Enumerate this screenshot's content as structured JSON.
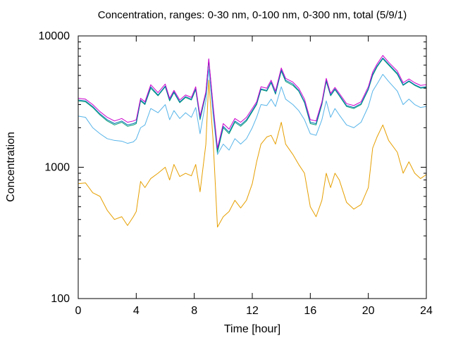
{
  "chart_data": {
    "type": "line",
    "title": "Concentration, ranges: 0-30 nm, 0-100 nm, 0-300 nm, total (5/9/1)",
    "xlabel": "Time [hour]",
    "ylabel": "Concentration",
    "xlim": [
      0,
      24
    ],
    "ylim": [
      100,
      10000
    ],
    "y_scale": "log",
    "grid": false,
    "x_ticks": [
      0,
      4,
      8,
      12,
      16,
      20,
      24
    ],
    "x_tick_labels": [
      "0",
      "4",
      "8",
      "12",
      "16",
      "20",
      "24"
    ],
    "y_ticks": [
      100,
      1000,
      10000
    ],
    "y_tick_labels": [
      "100",
      "1000",
      "10000"
    ],
    "y_minor_ticks": [
      200,
      300,
      400,
      500,
      600,
      700,
      800,
      900,
      2000,
      3000,
      4000,
      5000,
      6000,
      7000,
      8000,
      9000
    ],
    "series": [
      {
        "color": "#e69f00",
        "points": [
          [
            0,
            750
          ],
          [
            0.5,
            760
          ],
          [
            1,
            640
          ],
          [
            1.5,
            600
          ],
          [
            2,
            470
          ],
          [
            2.5,
            400
          ],
          [
            3,
            420
          ],
          [
            3.4,
            360
          ],
          [
            3.8,
            420
          ],
          [
            4,
            460
          ],
          [
            4.3,
            780
          ],
          [
            4.6,
            700
          ],
          [
            5,
            820
          ],
          [
            5.5,
            900
          ],
          [
            6,
            1000
          ],
          [
            6.3,
            800
          ],
          [
            6.6,
            1050
          ],
          [
            7,
            850
          ],
          [
            7.4,
            900
          ],
          [
            7.8,
            860
          ],
          [
            8.1,
            1050
          ],
          [
            8.4,
            650
          ],
          [
            8.8,
            1500
          ],
          [
            9,
            4600
          ],
          [
            9.3,
            1600
          ],
          [
            9.6,
            350
          ],
          [
            10,
            420
          ],
          [
            10.4,
            460
          ],
          [
            10.8,
            560
          ],
          [
            11.2,
            490
          ],
          [
            11.6,
            560
          ],
          [
            12,
            750
          ],
          [
            12.3,
            1100
          ],
          [
            12.6,
            1500
          ],
          [
            13,
            1700
          ],
          [
            13.3,
            1750
          ],
          [
            13.6,
            1500
          ],
          [
            14,
            2200
          ],
          [
            14.3,
            1500
          ],
          [
            14.8,
            1250
          ],
          [
            15.2,
            1050
          ],
          [
            15.6,
            900
          ],
          [
            16,
            500
          ],
          [
            16.4,
            420
          ],
          [
            16.8,
            560
          ],
          [
            17.1,
            900
          ],
          [
            17.4,
            700
          ],
          [
            17.7,
            900
          ],
          [
            18,
            800
          ],
          [
            18.5,
            540
          ],
          [
            19,
            480
          ],
          [
            19.5,
            520
          ],
          [
            20,
            700
          ],
          [
            20.3,
            1400
          ],
          [
            20.6,
            1700
          ],
          [
            21,
            2100
          ],
          [
            21.4,
            1600
          ],
          [
            22,
            1300
          ],
          [
            22.4,
            900
          ],
          [
            22.8,
            1100
          ],
          [
            23.2,
            900
          ],
          [
            23.6,
            820
          ],
          [
            24,
            880
          ]
        ]
      },
      {
        "color": "#56b4e9",
        "points": [
          [
            0,
            2450
          ],
          [
            0.5,
            2400
          ],
          [
            1,
            2000
          ],
          [
            1.5,
            1800
          ],
          [
            2,
            1650
          ],
          [
            2.5,
            1600
          ],
          [
            3,
            1580
          ],
          [
            3.4,
            1520
          ],
          [
            3.8,
            1560
          ],
          [
            4,
            1640
          ],
          [
            4.3,
            2000
          ],
          [
            4.6,
            2100
          ],
          [
            5,
            2800
          ],
          [
            5.5,
            2600
          ],
          [
            6,
            3000
          ],
          [
            6.3,
            2300
          ],
          [
            6.6,
            2700
          ],
          [
            7,
            2350
          ],
          [
            7.4,
            2600
          ],
          [
            7.8,
            2400
          ],
          [
            8.1,
            2850
          ],
          [
            8.4,
            1800
          ],
          [
            8.8,
            3200
          ],
          [
            9,
            5600
          ],
          [
            9.3,
            2500
          ],
          [
            9.6,
            1250
          ],
          [
            10,
            1500
          ],
          [
            10.4,
            1350
          ],
          [
            10.8,
            1650
          ],
          [
            11.2,
            1500
          ],
          [
            11.6,
            1650
          ],
          [
            12,
            2000
          ],
          [
            12.3,
            2400
          ],
          [
            12.6,
            3000
          ],
          [
            13,
            2950
          ],
          [
            13.3,
            3300
          ],
          [
            13.6,
            2900
          ],
          [
            14,
            4100
          ],
          [
            14.3,
            3300
          ],
          [
            14.8,
            3000
          ],
          [
            15.2,
            2700
          ],
          [
            15.6,
            2300
          ],
          [
            16,
            1800
          ],
          [
            16.4,
            1750
          ],
          [
            16.8,
            2300
          ],
          [
            17.1,
            3200
          ],
          [
            17.4,
            2400
          ],
          [
            17.7,
            2800
          ],
          [
            18,
            2500
          ],
          [
            18.5,
            2100
          ],
          [
            19,
            2000
          ],
          [
            19.5,
            2200
          ],
          [
            20,
            2900
          ],
          [
            20.3,
            3800
          ],
          [
            20.6,
            4300
          ],
          [
            21,
            5100
          ],
          [
            21.4,
            4500
          ],
          [
            22,
            3800
          ],
          [
            22.4,
            3000
          ],
          [
            22.8,
            3300
          ],
          [
            23.2,
            3000
          ],
          [
            23.6,
            2850
          ],
          [
            24,
            2900
          ]
        ]
      },
      {
        "color": "#009e73",
        "points": [
          [
            0,
            3200
          ],
          [
            0.5,
            3150
          ],
          [
            1,
            2850
          ],
          [
            1.5,
            2500
          ],
          [
            2,
            2250
          ],
          [
            2.5,
            2100
          ],
          [
            3,
            2200
          ],
          [
            3.4,
            2050
          ],
          [
            3.8,
            2100
          ],
          [
            4,
            2150
          ],
          [
            4.3,
            3200
          ],
          [
            4.6,
            3000
          ],
          [
            5,
            4000
          ],
          [
            5.5,
            3500
          ],
          [
            6,
            4100
          ],
          [
            6.3,
            3200
          ],
          [
            6.6,
            3700
          ],
          [
            7,
            3100
          ],
          [
            7.4,
            3400
          ],
          [
            7.8,
            3250
          ],
          [
            8.1,
            3900
          ],
          [
            8.4,
            2300
          ],
          [
            8.8,
            3600
          ],
          [
            9,
            6500
          ],
          [
            9.3,
            2800
          ],
          [
            9.6,
            1300
          ],
          [
            10,
            2000
          ],
          [
            10.4,
            1800
          ],
          [
            10.8,
            2200
          ],
          [
            11.2,
            2050
          ],
          [
            11.6,
            2250
          ],
          [
            12,
            2650
          ],
          [
            12.3,
            3000
          ],
          [
            12.6,
            3900
          ],
          [
            13,
            3800
          ],
          [
            13.3,
            4400
          ],
          [
            13.6,
            3600
          ],
          [
            14,
            5400
          ],
          [
            14.3,
            4500
          ],
          [
            14.8,
            4200
          ],
          [
            15.2,
            3800
          ],
          [
            15.6,
            3100
          ],
          [
            16,
            2150
          ],
          [
            16.4,
            2100
          ],
          [
            16.8,
            3000
          ],
          [
            17.1,
            4500
          ],
          [
            17.4,
            3500
          ],
          [
            17.7,
            3900
          ],
          [
            18,
            3500
          ],
          [
            18.5,
            2900
          ],
          [
            19,
            2800
          ],
          [
            19.5,
            3000
          ],
          [
            20,
            3900
          ],
          [
            20.3,
            5000
          ],
          [
            20.6,
            5800
          ],
          [
            21,
            6700
          ],
          [
            21.4,
            6000
          ],
          [
            22,
            5100
          ],
          [
            22.4,
            4200
          ],
          [
            22.8,
            4500
          ],
          [
            23.2,
            4200
          ],
          [
            23.6,
            4000
          ],
          [
            24,
            4050
          ]
        ]
      },
      {
        "color": "#0072b2",
        "points": [
          [
            0,
            3250
          ],
          [
            0.5,
            3200
          ],
          [
            1,
            2900
          ],
          [
            1.5,
            2550
          ],
          [
            2,
            2300
          ],
          [
            2.5,
            2150
          ],
          [
            3,
            2250
          ],
          [
            3.4,
            2100
          ],
          [
            3.8,
            2150
          ],
          [
            4,
            2200
          ],
          [
            4.3,
            3250
          ],
          [
            4.6,
            3050
          ],
          [
            5,
            4100
          ],
          [
            5.5,
            3550
          ],
          [
            6,
            4150
          ],
          [
            6.3,
            3250
          ],
          [
            6.6,
            3750
          ],
          [
            7,
            3150
          ],
          [
            7.4,
            3450
          ],
          [
            7.8,
            3300
          ],
          [
            8.1,
            3950
          ],
          [
            8.4,
            2350
          ],
          [
            8.8,
            3650
          ],
          [
            9,
            6600
          ],
          [
            9.3,
            2850
          ],
          [
            9.6,
            1350
          ],
          [
            10,
            2050
          ],
          [
            10.4,
            1850
          ],
          [
            10.8,
            2250
          ],
          [
            11.2,
            2100
          ],
          [
            11.6,
            2300
          ],
          [
            12,
            2700
          ],
          [
            12.3,
            3050
          ],
          [
            12.6,
            3950
          ],
          [
            13,
            3850
          ],
          [
            13.3,
            4450
          ],
          [
            13.6,
            3650
          ],
          [
            14,
            5500
          ],
          [
            14.3,
            4600
          ],
          [
            14.8,
            4300
          ],
          [
            15.2,
            3850
          ],
          [
            15.6,
            3150
          ],
          [
            16,
            2200
          ],
          [
            16.4,
            2150
          ],
          [
            16.8,
            3050
          ],
          [
            17.1,
            4600
          ],
          [
            17.4,
            3550
          ],
          [
            17.7,
            3950
          ],
          [
            18,
            3550
          ],
          [
            18.5,
            2950
          ],
          [
            19,
            2850
          ],
          [
            19.5,
            3050
          ],
          [
            20,
            3950
          ],
          [
            20.3,
            5100
          ],
          [
            20.6,
            5900
          ],
          [
            21,
            6800
          ],
          [
            21.4,
            6100
          ],
          [
            22,
            5200
          ],
          [
            22.4,
            4250
          ],
          [
            22.8,
            4550
          ],
          [
            23.2,
            4250
          ],
          [
            23.6,
            4050
          ],
          [
            24,
            4100
          ]
        ]
      },
      {
        "color": "#cc00cc",
        "points": [
          [
            0,
            3350
          ],
          [
            0.5,
            3300
          ],
          [
            1,
            3000
          ],
          [
            1.5,
            2650
          ],
          [
            2,
            2400
          ],
          [
            2.5,
            2250
          ],
          [
            3,
            2350
          ],
          [
            3.4,
            2200
          ],
          [
            3.8,
            2250
          ],
          [
            4,
            2300
          ],
          [
            4.3,
            3350
          ],
          [
            4.6,
            3150
          ],
          [
            5,
            4250
          ],
          [
            5.5,
            3700
          ],
          [
            6,
            4300
          ],
          [
            6.3,
            3350
          ],
          [
            6.6,
            3850
          ],
          [
            7,
            3250
          ],
          [
            7.4,
            3550
          ],
          [
            7.8,
            3400
          ],
          [
            8.1,
            4100
          ],
          [
            8.4,
            2450
          ],
          [
            8.8,
            3750
          ],
          [
            9,
            6700
          ],
          [
            9.3,
            2950
          ],
          [
            9.6,
            1400
          ],
          [
            10,
            2150
          ],
          [
            10.4,
            1950
          ],
          [
            10.8,
            2350
          ],
          [
            11.2,
            2200
          ],
          [
            11.6,
            2400
          ],
          [
            12,
            2800
          ],
          [
            12.3,
            3150
          ],
          [
            12.6,
            4100
          ],
          [
            13,
            4000
          ],
          [
            13.3,
            4600
          ],
          [
            13.6,
            3800
          ],
          [
            14,
            5700
          ],
          [
            14.3,
            4750
          ],
          [
            14.8,
            4450
          ],
          [
            15.2,
            4000
          ],
          [
            15.6,
            3300
          ],
          [
            16,
            2300
          ],
          [
            16.4,
            2250
          ],
          [
            16.8,
            3150
          ],
          [
            17.1,
            4750
          ],
          [
            17.4,
            3650
          ],
          [
            17.7,
            4050
          ],
          [
            18,
            3650
          ],
          [
            18.5,
            3050
          ],
          [
            19,
            2950
          ],
          [
            19.5,
            3150
          ],
          [
            20,
            4100
          ],
          [
            20.3,
            5300
          ],
          [
            20.6,
            6100
          ],
          [
            21,
            7100
          ],
          [
            21.4,
            6300
          ],
          [
            22,
            5400
          ],
          [
            22.4,
            4400
          ],
          [
            22.8,
            4700
          ],
          [
            23.2,
            4400
          ],
          [
            23.6,
            4200
          ],
          [
            24,
            4250
          ]
        ]
      }
    ]
  }
}
